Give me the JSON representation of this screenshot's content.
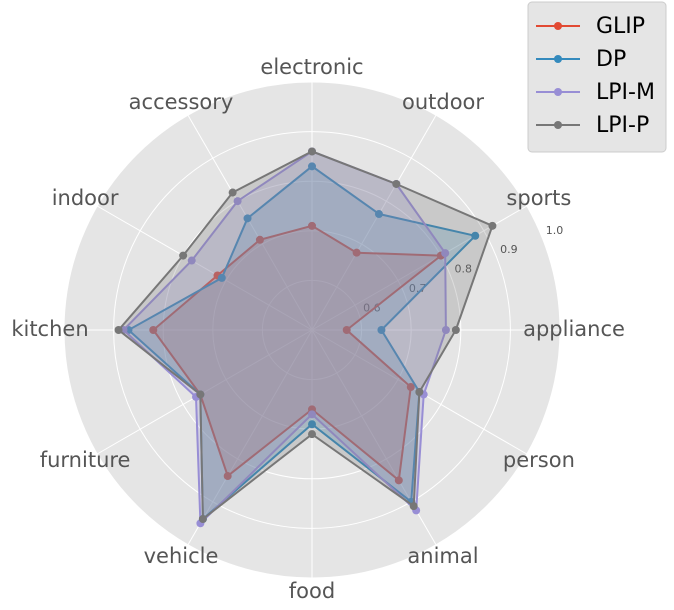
{
  "chart_data": {
    "type": "radar",
    "categories": [
      "appliance",
      "sports",
      "outdoor",
      "electronic",
      "accessory",
      "indoor",
      "kitchen",
      "furniture",
      "vehicle",
      "food",
      "animal",
      "person"
    ],
    "ylim": [
      0.5,
      1.0
    ],
    "yticks": [
      0.6,
      0.7,
      0.8,
      0.9,
      {
        "value": 1.0,
        "label": "1.0"
      }
    ],
    "grid": true,
    "legend": "upper right",
    "series": [
      {
        "name": "GLIP",
        "color": "#E24A33",
        "values": [
          0.57,
          0.8,
          0.68,
          0.71,
          0.71,
          0.72,
          0.82,
          0.76,
          0.84,
          0.66,
          0.85,
          0.73
        ]
      },
      {
        "name": "DP",
        "color": "#348ABD",
        "values": [
          0.64,
          0.88,
          0.77,
          0.83,
          0.76,
          0.71,
          0.87,
          0.76,
          0.94,
          0.69,
          0.9,
          0.75
        ]
      },
      {
        "name": "LPI-M",
        "color": "#988ED5",
        "values": [
          0.77,
          0.81,
          0.84,
          0.86,
          0.8,
          0.78,
          0.88,
          0.77,
          0.95,
          0.67,
          0.92,
          0.76
        ]
      },
      {
        "name": "LPI-P",
        "color": "#777777",
        "values": [
          0.79,
          0.92,
          0.84,
          0.86,
          0.82,
          0.8,
          0.89,
          0.76,
          0.94,
          0.71,
          0.91,
          0.75
        ]
      }
    ]
  }
}
